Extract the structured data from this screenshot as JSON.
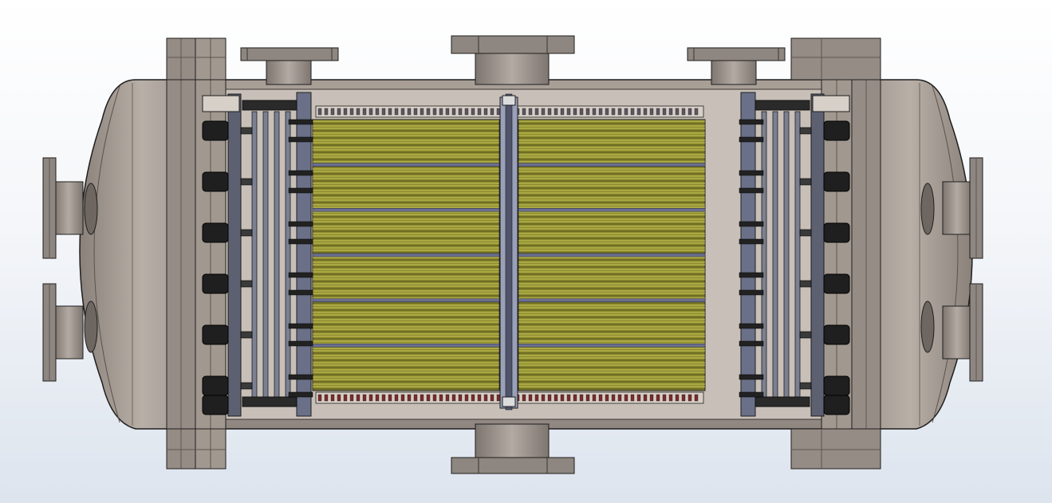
{
  "colors": {
    "background_top": "#ffffff",
    "background_bottom": "#dde4ee",
    "shell": "#9a9088",
    "shell_dark": "#6b625b",
    "shell_light": "#b7aea6",
    "cavity": "#c4bcb4",
    "outline": "#1e1e1e",
    "flange": "#8e8680",
    "tube_bundle": "#8c8a2e",
    "tube_line": "#d4d060",
    "tube_dark": "#4c4a1a",
    "baffle": "#6a6f90",
    "plate": "#5c6070",
    "plug": "#1f1f1f",
    "seal_red": "#7a2a2a"
  },
  "icons": {
    "nozzle": "pipe-nozzle-icon",
    "flange": "flange-icon",
    "tube_bundle": "tube-bundle-icon",
    "tubesheet": "tubesheet-icon",
    "divider": "divider-plate-icon"
  },
  "layout_meta": {
    "bundle_sections_per_side": 6,
    "plugs_per_side": 6
  }
}
